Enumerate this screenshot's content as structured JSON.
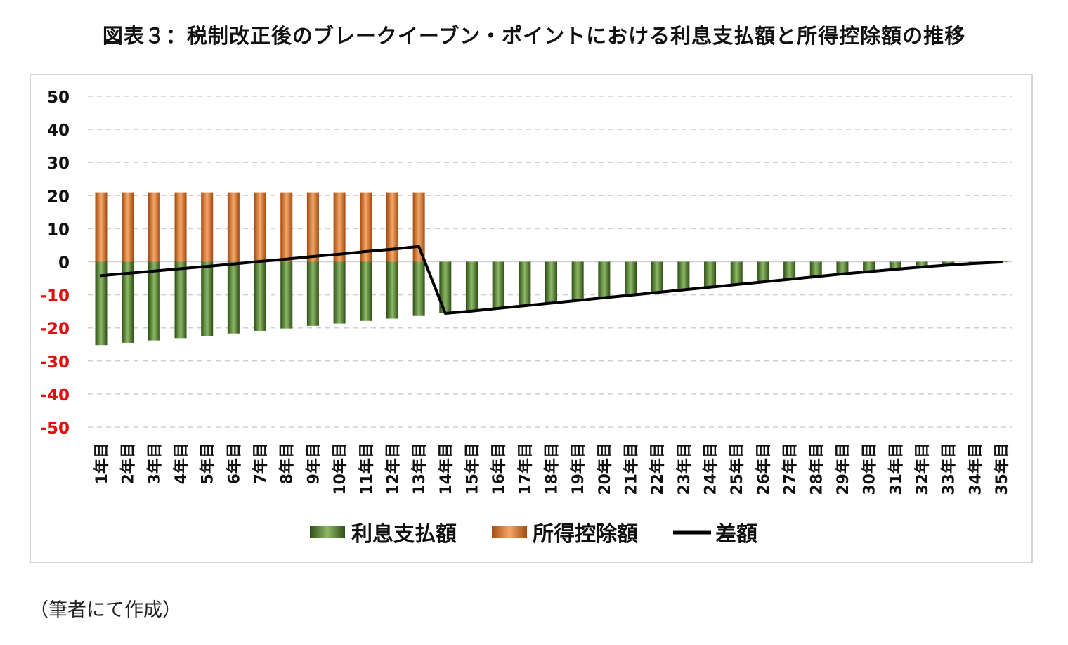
{
  "title": "図表３：税制改正後のブレークイーブン・ポイントにおける利息支払額と所得控除額の推移",
  "source_note": "（筆者にて作成）",
  "colors": {
    "interest": "#4e7a2a",
    "interest_dark": "#2f4f16",
    "interest_light": "#8cb866",
    "deduction": "#e07024",
    "deduction_dark": "#a44910",
    "deduction_light": "#f5a868",
    "difference": "#000000",
    "negative_tick": "#e01010",
    "grid": "#d0d0d0"
  },
  "chart_data": {
    "type": "bar",
    "title": "",
    "xlabel": "",
    "ylabel": "",
    "ylim": [
      -50,
      50
    ],
    "yticks": [
      50,
      40,
      30,
      20,
      10,
      0,
      -10,
      -20,
      -30,
      -40,
      -50
    ],
    "grid": true,
    "legend_position": "bottom",
    "categories": [
      "1年目",
      "2年目",
      "3年目",
      "4年目",
      "5年目",
      "6年目",
      "7年目",
      "8年目",
      "9年目",
      "10年目",
      "11年目",
      "12年目",
      "13年目",
      "14年目",
      "15年目",
      "16年目",
      "17年目",
      "18年目",
      "19年目",
      "20年目",
      "21年目",
      "22年目",
      "23年目",
      "24年目",
      "25年目",
      "26年目",
      "27年目",
      "28年目",
      "29年目",
      "30年目",
      "31年目",
      "32年目",
      "33年目",
      "34年目",
      "35年目"
    ],
    "series": [
      {
        "name": "利息支払額",
        "type": "bar",
        "values": [
          -25.2,
          -24.5,
          -23.8,
          -23.1,
          -22.4,
          -21.7,
          -20.9,
          -20.2,
          -19.4,
          -18.7,
          -17.9,
          -17.2,
          -16.4,
          -15.6,
          -14.9,
          -14.1,
          -13.3,
          -12.5,
          -11.7,
          -10.9,
          -10.1,
          -9.3,
          -8.5,
          -7.7,
          -6.9,
          -6.1,
          -5.3,
          -4.5,
          -3.7,
          -3.0,
          -2.3,
          -1.6,
          -1.0,
          -0.5,
          -0.1
        ]
      },
      {
        "name": "所得控除額",
        "type": "bar",
        "values": [
          21,
          21,
          21,
          21,
          21,
          21,
          21,
          21,
          21,
          21,
          21,
          21,
          21,
          0,
          0,
          0,
          0,
          0,
          0,
          0,
          0,
          0,
          0,
          0,
          0,
          0,
          0,
          0,
          0,
          0,
          0,
          0,
          0,
          0,
          0
        ]
      },
      {
        "name": "差額",
        "type": "line",
        "values": [
          -4.2,
          -3.5,
          -2.8,
          -2.1,
          -1.4,
          -0.7,
          0.1,
          0.8,
          1.6,
          2.3,
          3.1,
          3.8,
          4.6,
          -15.6,
          -14.9,
          -14.1,
          -13.3,
          -12.5,
          -11.7,
          -10.9,
          -10.1,
          -9.3,
          -8.5,
          -7.7,
          -6.9,
          -6.1,
          -5.3,
          -4.5,
          -3.7,
          -3.0,
          -2.3,
          -1.6,
          -1.0,
          -0.5,
          -0.1
        ]
      }
    ]
  }
}
